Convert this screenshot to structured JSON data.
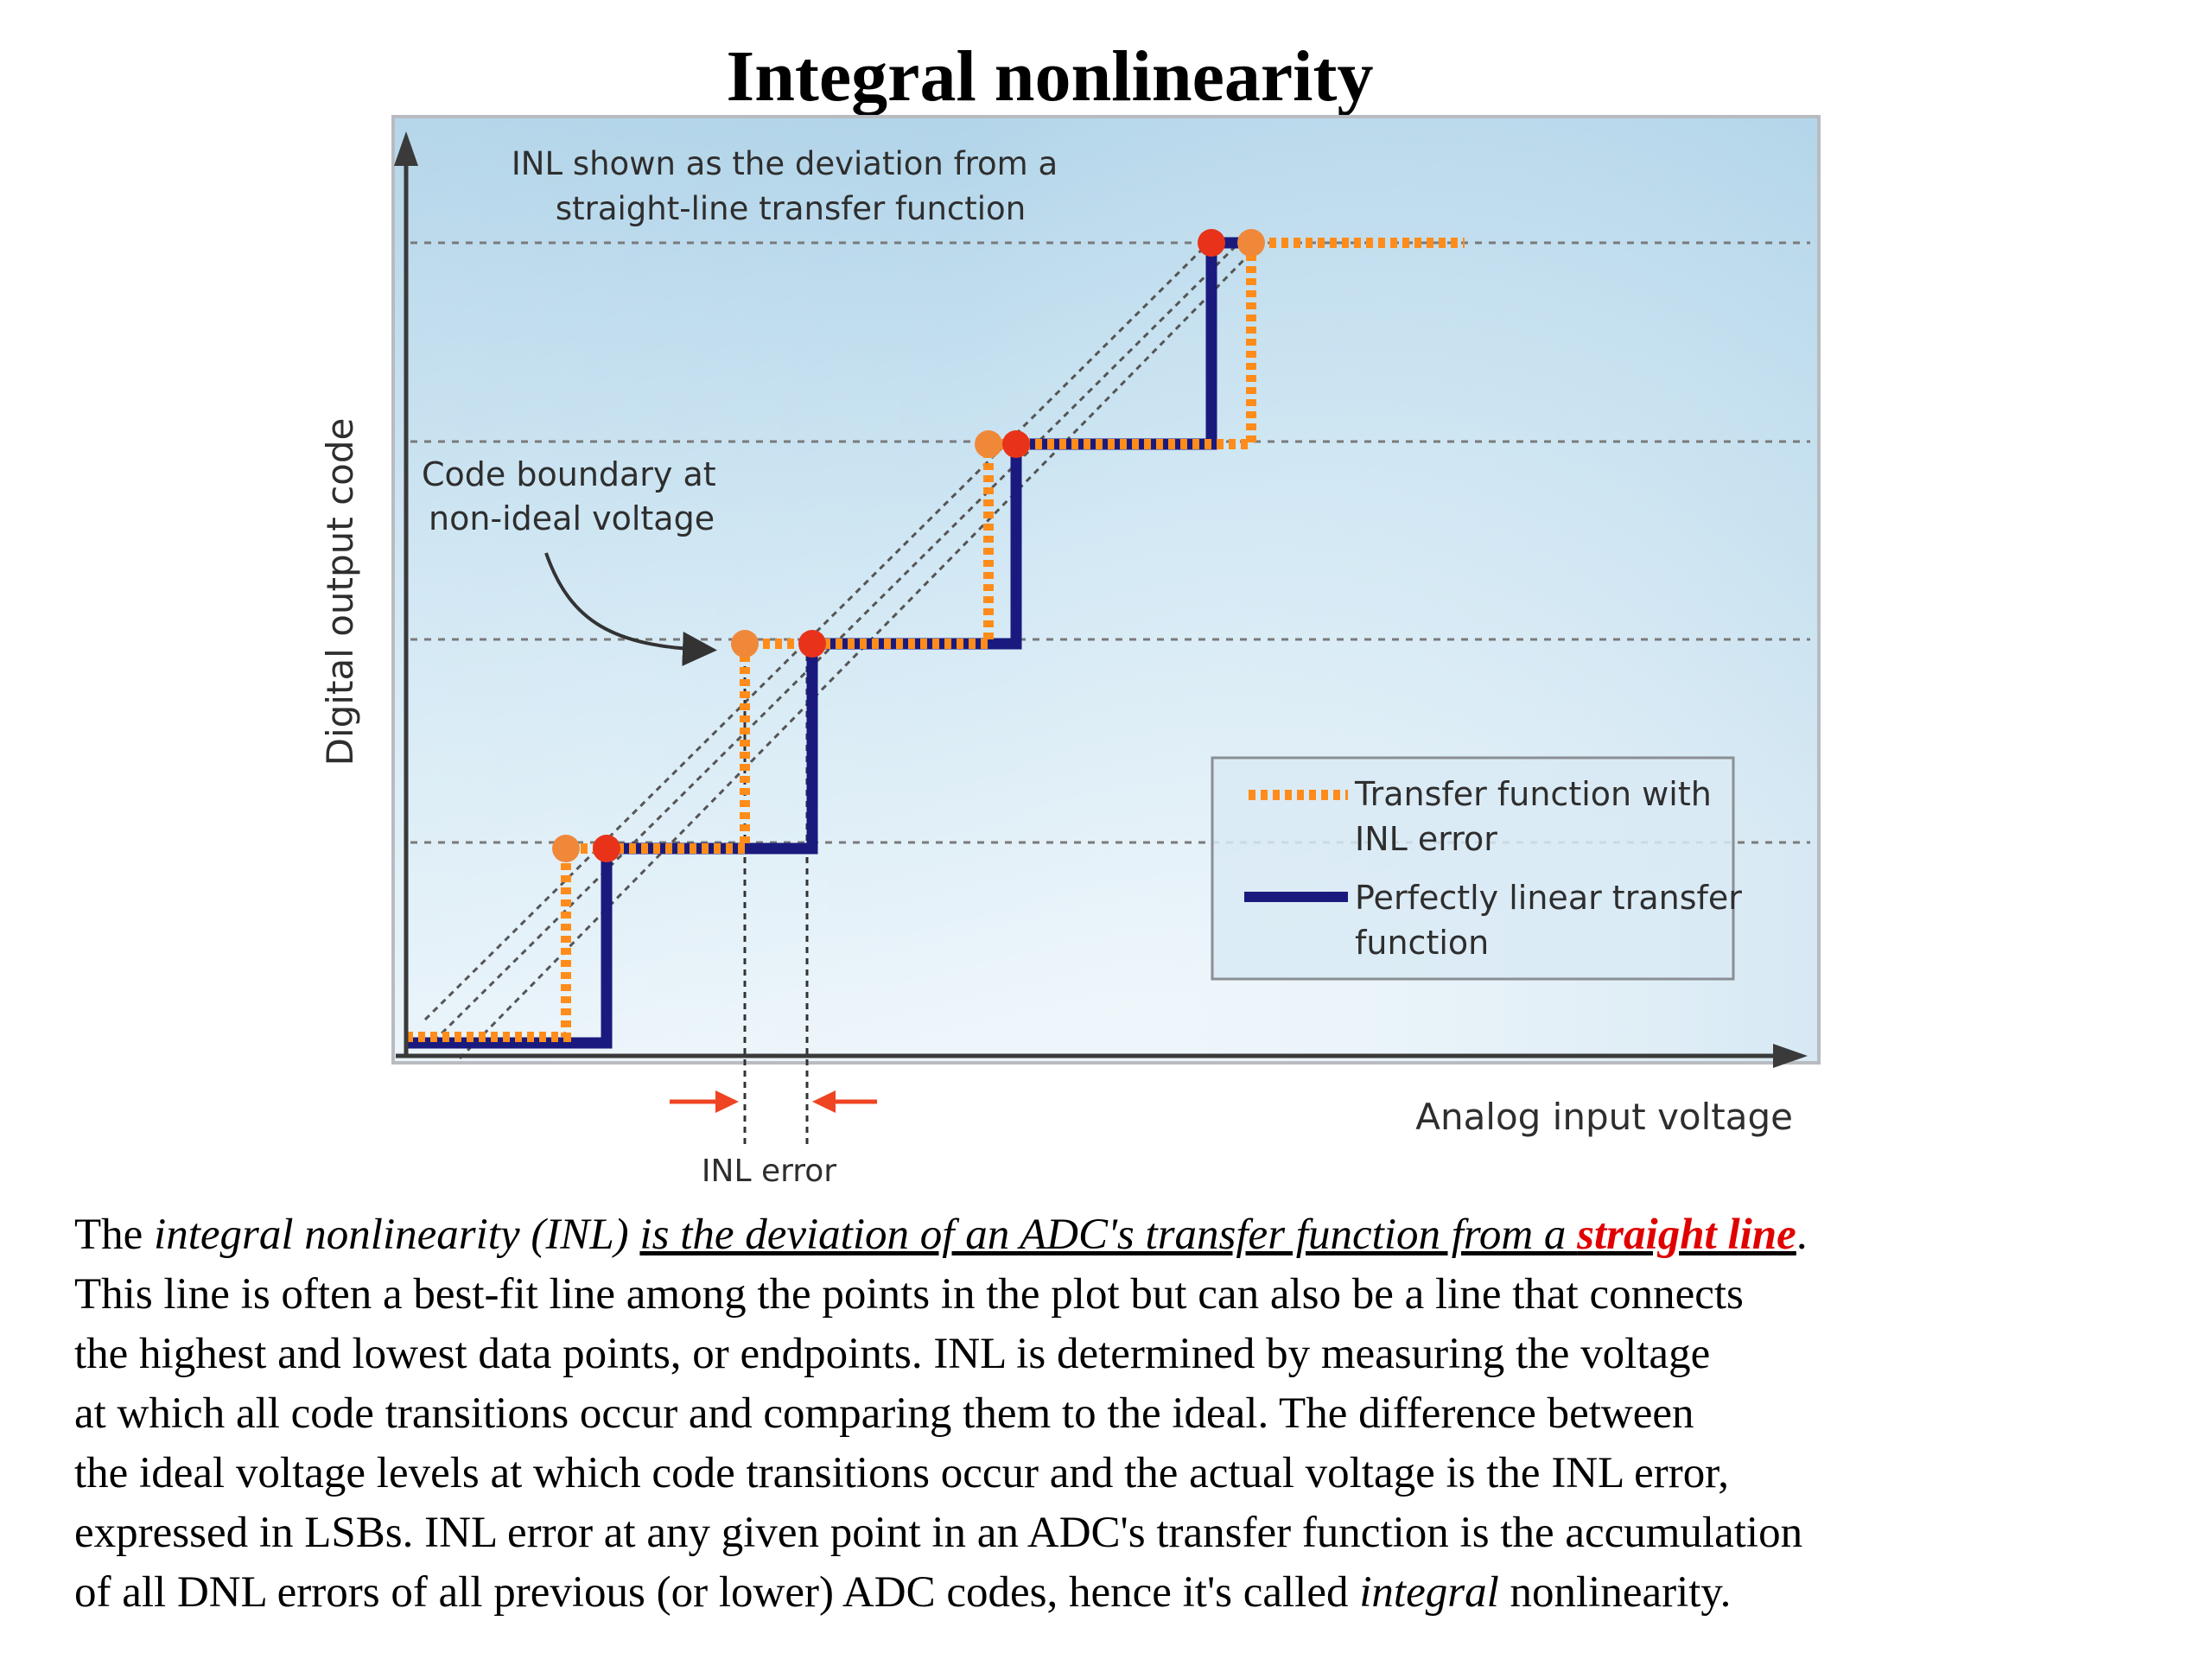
{
  "title": "Integral nonlinearity",
  "diagram": {
    "top_note": [
      "INL shown as the deviation from a",
      "straight-line transfer function"
    ],
    "boundary_note": [
      "Code boundary at",
      "non-ideal voltage"
    ],
    "y_axis_label": "Digital output code",
    "x_axis_label": "Analog input voltage",
    "inl_error_label": "INL error",
    "legend": {
      "inl_series": [
        "Transfer function with",
        "INL error"
      ],
      "linear_series": [
        "Perfectly linear transfer",
        "function"
      ]
    },
    "colors": {
      "ideal_line": "#1a1a7e",
      "inl_line": "#ff8c1a",
      "marker_red": "#e8331a",
      "marker_orange": "#f0883a",
      "arrow": "#ee4422",
      "background_top": "#a9cfe6",
      "background_bottom": "#eef6fb"
    }
  },
  "paragraph": {
    "l1_a": "The ",
    "l1_b": "integral nonlinearity (INL)",
    "l1_c": " ",
    "l1_d": "is the deviation of an ADC's transfer function from a ",
    "l1_e": "straight line",
    "l1_f": ".",
    "l2": "This line is often a best-fit line among the points in the plot but can also be a line that connects",
    "l3": "the highest and lowest data points, or endpoints. INL is determined by measuring the voltage",
    "l4": "at which all code transitions occur and comparing them to the ideal. The difference between",
    "l5": "the ideal voltage levels at which code transitions occur and the actual voltage is the INL error,",
    "l6": "expressed in LSBs. INL error at any given point in an ADC's transfer function is the accumulation",
    "l7_a": "of all DNL errors of all previous (or lower) ADC codes, hence it's called ",
    "l7_b": "integral",
    "l7_c": " nonlinearity."
  }
}
